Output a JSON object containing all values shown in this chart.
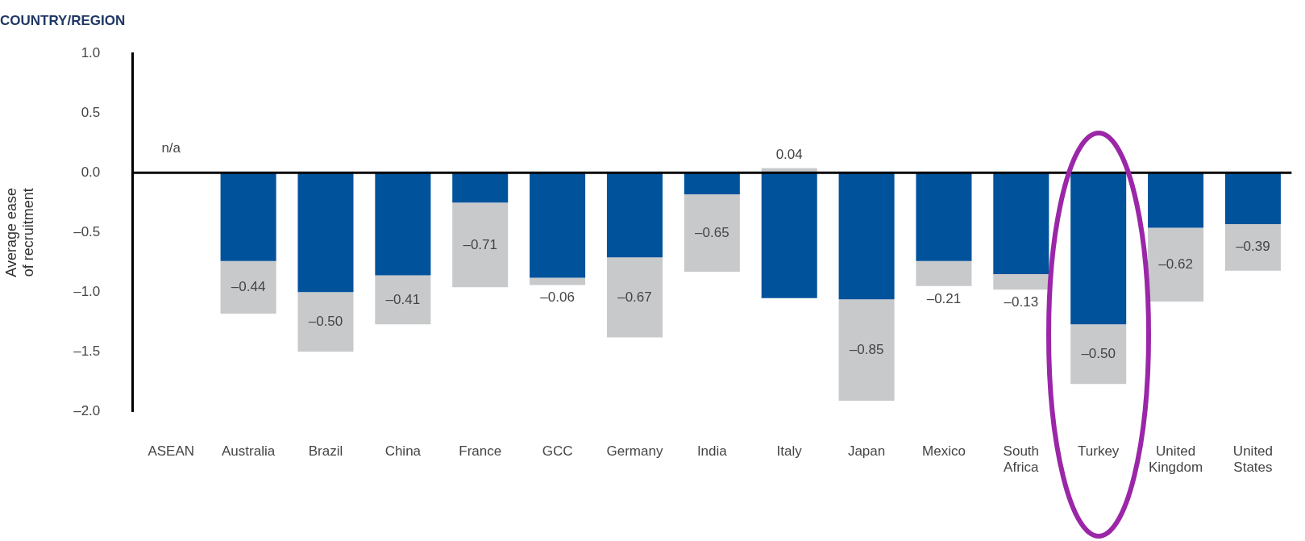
{
  "chart_data": {
    "type": "bar",
    "title": "COUNTRY/REGION",
    "ylabel": "Average ease of recruitment",
    "categories": [
      "ASEAN",
      "Australia",
      "Brazil",
      "China",
      "France",
      "GCC",
      "Germany",
      "India",
      "Italy",
      "Japan",
      "Mexico",
      "South Africa",
      "Turkey",
      "United Kingdom",
      "United States"
    ],
    "stacked": true,
    "series": [
      {
        "color": "#00529b",
        "values": [
          null,
          -0.74,
          -1.0,
          -0.86,
          -0.25,
          -0.88,
          -0.71,
          -0.18,
          -1.05,
          -1.06,
          -0.74,
          -0.85,
          -1.27,
          -0.46,
          -0.43
        ]
      },
      {
        "color": "#c8c9cb",
        "values": [
          null,
          -0.44,
          -0.5,
          -0.41,
          -0.71,
          -0.06,
          -0.67,
          -0.65,
          0.04,
          -0.85,
          -0.21,
          -0.13,
          -0.5,
          -0.62,
          -0.39
        ],
        "value_labels": [
          null,
          "–0.44",
          "–0.50",
          "–0.41",
          "–0.71",
          "–0.06",
          "–0.67",
          "–0.65",
          "0.04",
          "–0.85",
          "–0.21",
          "–0.13",
          "–0.50",
          "–0.62",
          "–0.39"
        ]
      }
    ],
    "ylim": [
      -2,
      1
    ],
    "yticks": [
      {
        "value": -2,
        "label": "–2.0"
      },
      {
        "value": -1.5,
        "label": "–1.5"
      },
      {
        "value": -1,
        "label": "–1.0"
      },
      {
        "value": -0.5,
        "label": "–0.5"
      },
      {
        "value": 0,
        "label": "0.0"
      },
      0.5,
      {
        "value": 1,
        "label": "1.0"
      }
    ],
    "ref_lines": [
      {
        "axis": "y",
        "value": 0,
        "color": "#000000"
      }
    ],
    "annotations": [
      "n/a"
    ]
  }
}
